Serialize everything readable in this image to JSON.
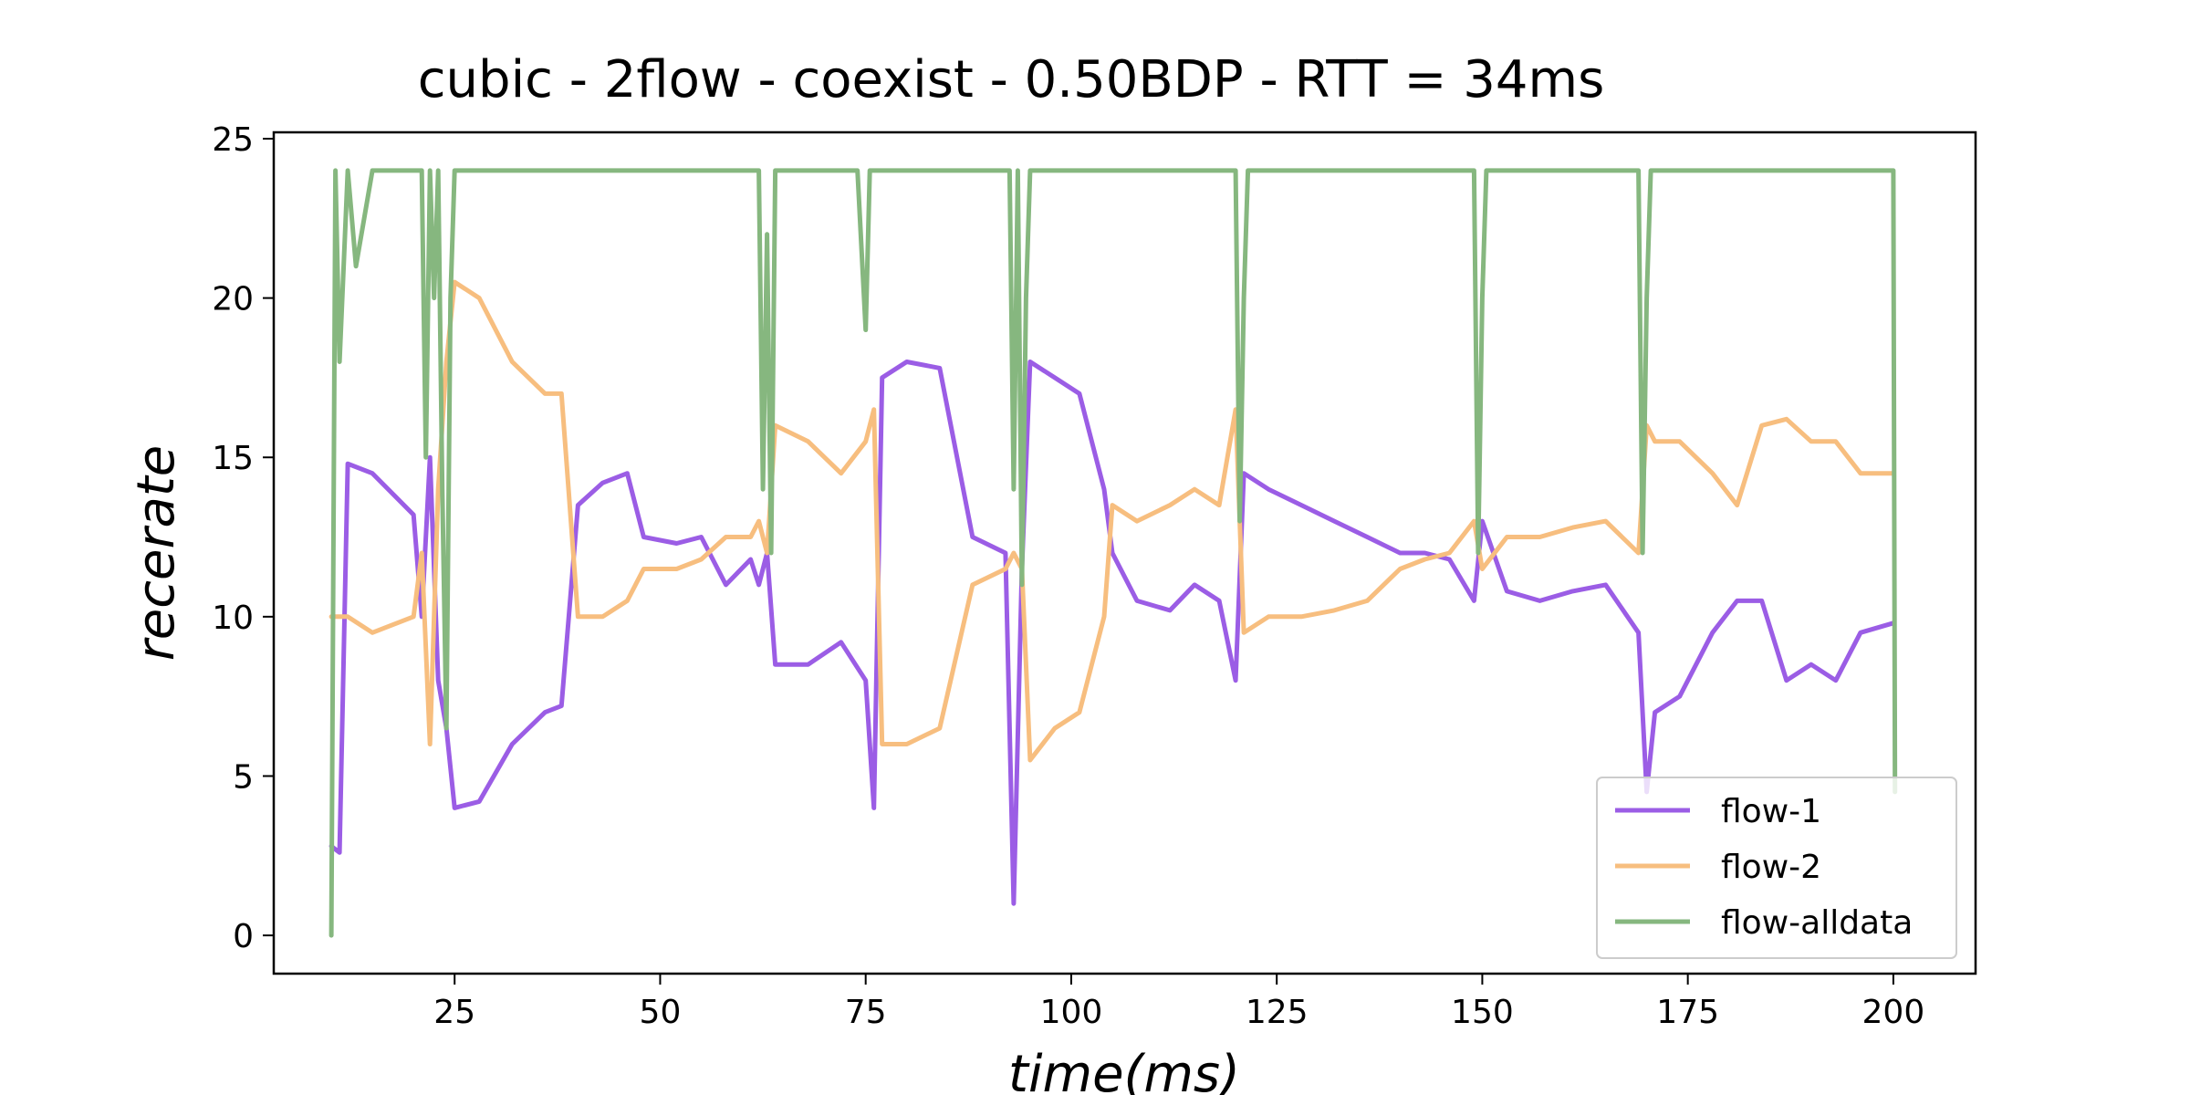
{
  "chart_data": {
    "type": "line",
    "title": "cubic - 2flow - coexist - 0.50BDP - RTT = 34ms",
    "xlabel": "time(ms)",
    "ylabel": "recerate",
    "xlim": [
      3,
      210
    ],
    "ylim": [
      -1.2,
      25.2
    ],
    "xticks": [
      25,
      50,
      75,
      100,
      125,
      150,
      175,
      200
    ],
    "yticks": [
      0,
      5,
      10,
      15,
      20,
      25
    ],
    "grid": false,
    "legend": "lower-right",
    "series": [
      {
        "name": "flow-1",
        "color": "#9b5de5",
        "x": [
          10,
          11,
          12,
          15,
          20,
          21,
          22,
          23,
          24,
          25,
          28,
          32,
          36,
          38,
          40,
          43,
          46,
          48,
          52,
          55,
          58,
          61,
          62,
          63,
          64,
          68,
          72,
          75,
          76,
          77,
          80,
          84,
          88,
          92,
          93,
          94,
          95,
          98,
          101,
          104,
          105,
          108,
          112,
          115,
          118,
          120,
          121,
          124,
          128,
          132,
          136,
          140,
          143,
          146,
          149,
          150,
          153,
          157,
          161,
          165,
          169,
          170,
          171,
          174,
          178,
          181,
          184,
          187,
          190,
          193,
          196,
          200
        ],
        "values": [
          2.8,
          2.6,
          14.8,
          14.5,
          13.2,
          10.0,
          15.0,
          8.0,
          6.5,
          4.0,
          4.2,
          6.0,
          7.0,
          7.2,
          13.5,
          14.2,
          14.5,
          12.5,
          12.3,
          12.5,
          11.0,
          11.8,
          11.0,
          12.0,
          8.5,
          8.5,
          9.2,
          8.0,
          4.0,
          17.5,
          18.0,
          17.8,
          12.5,
          12.0,
          1.0,
          11.5,
          18.0,
          17.5,
          17.0,
          14.0,
          12.0,
          10.5,
          10.2,
          11.0,
          10.5,
          8.0,
          14.5,
          14.0,
          13.5,
          13.0,
          12.5,
          12.0,
          12.0,
          11.8,
          10.5,
          13.0,
          10.8,
          10.5,
          10.8,
          11.0,
          9.5,
          4.5,
          7.0,
          7.5,
          9.5,
          10.5,
          10.5,
          8.0,
          8.5,
          8.0,
          9.5,
          9.8
        ]
      },
      {
        "name": "flow-2",
        "color": "#f7be7f",
        "x": [
          10,
          11,
          12,
          15,
          20,
          21,
          22,
          23,
          24,
          25,
          28,
          32,
          36,
          38,
          40,
          43,
          46,
          48,
          52,
          55,
          58,
          61,
          62,
          63,
          64,
          68,
          72,
          75,
          76,
          77,
          80,
          84,
          88,
          92,
          93,
          94,
          95,
          98,
          101,
          104,
          105,
          108,
          112,
          115,
          118,
          120,
          121,
          124,
          128,
          132,
          136,
          140,
          143,
          146,
          149,
          150,
          153,
          157,
          161,
          165,
          169,
          170,
          171,
          174,
          178,
          181,
          184,
          187,
          190,
          193,
          196,
          200
        ],
        "values": [
          10.0,
          10.0,
          10.0,
          9.5,
          10.0,
          12.0,
          6.0,
          14.0,
          18.0,
          20.5,
          20.0,
          18.0,
          17.0,
          17.0,
          10.0,
          10.0,
          10.5,
          11.5,
          11.5,
          11.8,
          12.5,
          12.5,
          13.0,
          12.0,
          16.0,
          15.5,
          14.5,
          15.5,
          16.5,
          6.0,
          6.0,
          6.5,
          11.0,
          11.5,
          12.0,
          11.5,
          5.5,
          6.5,
          7.0,
          10.0,
          13.5,
          13.0,
          13.5,
          14.0,
          13.5,
          16.5,
          9.5,
          10.0,
          10.0,
          10.2,
          10.5,
          11.5,
          11.8,
          12.0,
          13.0,
          11.5,
          12.5,
          12.5,
          12.8,
          13.0,
          12.0,
          16.0,
          15.5,
          15.5,
          14.5,
          13.5,
          16.0,
          16.2,
          15.5,
          15.5,
          14.5,
          14.5
        ]
      },
      {
        "name": "flow-alldata",
        "color": "#86b77f",
        "x": [
          10,
          10.5,
          11,
          12,
          13,
          15,
          17,
          21,
          21.5,
          22,
          22.5,
          23,
          23.5,
          24,
          24.5,
          25,
          30,
          35,
          40,
          45,
          50,
          55,
          60,
          62,
          62.5,
          63,
          63.5,
          64,
          70,
          74,
          75,
          75.5,
          76,
          80,
          85,
          90,
          92.5,
          93,
          93.5,
          94,
          94.5,
          95,
          100,
          110,
          120,
          120.5,
          121,
          121.5,
          122,
          130,
          140,
          148,
          149,
          149.5,
          150,
          150.5,
          151,
          160,
          168,
          169,
          169.5,
          170,
          170.5,
          171,
          180,
          190,
          195,
          200,
          200.2
        ],
        "values": [
          0.0,
          24.0,
          18.0,
          24.0,
          21.0,
          24.0,
          24.0,
          24.0,
          15.0,
          24.0,
          20.0,
          24.0,
          14.0,
          6.5,
          20.0,
          24.0,
          24.0,
          24.0,
          24.0,
          24.0,
          24.0,
          24.0,
          24.0,
          24.0,
          14.0,
          22.0,
          12.0,
          24.0,
          24.0,
          24.0,
          19.0,
          24.0,
          24.0,
          24.0,
          24.0,
          24.0,
          24.0,
          14.0,
          24.0,
          11.0,
          20.0,
          24.0,
          24.0,
          24.0,
          24.0,
          13.0,
          20.0,
          24.0,
          24.0,
          24.0,
          24.0,
          24.0,
          24.0,
          12.0,
          20.0,
          24.0,
          24.0,
          24.0,
          24.0,
          24.0,
          12.0,
          20.0,
          24.0,
          24.0,
          24.0,
          24.0,
          24.0,
          24.0,
          4.5
        ]
      }
    ]
  }
}
